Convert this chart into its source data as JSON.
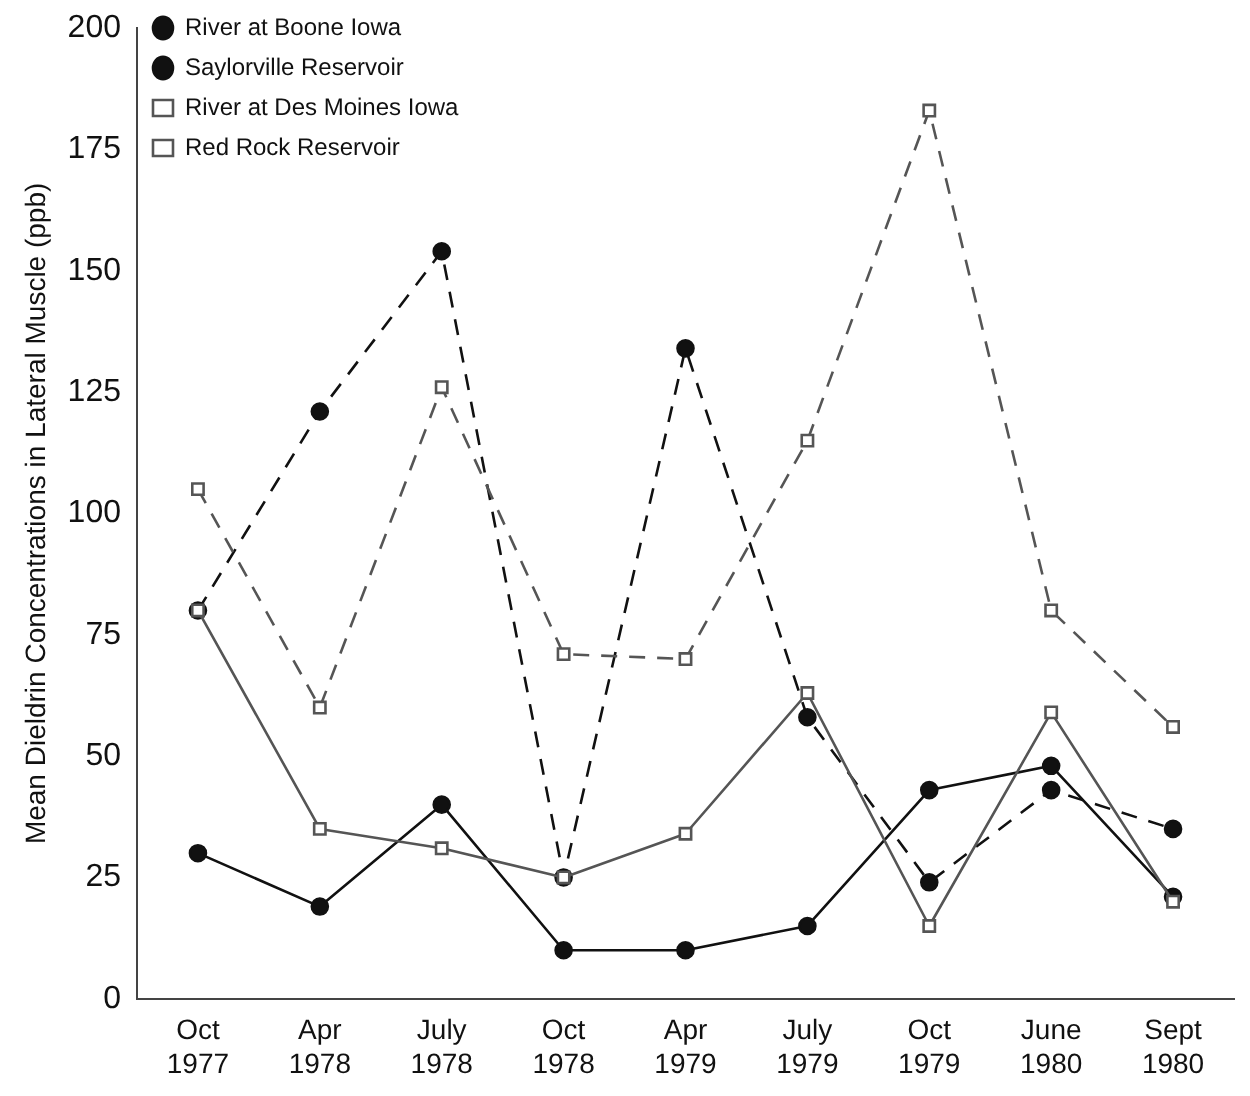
{
  "chart_data": {
    "type": "line",
    "ylabel": "Mean Dieldrin Concentrations in Lateral Muscle (ppb)",
    "categories": [
      "Oct 1977",
      "Apr 1978",
      "July 1978",
      "Oct 1978",
      "Apr 1979",
      "July 1979",
      "Oct 1979",
      "June 1980",
      "Sept 1980"
    ],
    "series": [
      {
        "name": "River at Boone Iowa",
        "color": "#111111",
        "marker": "circle",
        "line_style": "solid",
        "values": [
          30,
          19,
          40,
          10,
          10,
          15,
          43,
          48,
          21
        ]
      },
      {
        "name": "Saylorville Reservoir",
        "color": "#111111",
        "marker": "circle",
        "line_style": "dashed",
        "values": [
          80,
          121,
          154,
          25,
          134,
          58,
          24,
          43,
          35
        ]
      },
      {
        "name": "River at Des Moines Iowa",
        "color": "#555555",
        "marker": "square",
        "line_style": "solid",
        "values": [
          80,
          35,
          31,
          25,
          34,
          63,
          15,
          59,
          20
        ]
      },
      {
        "name": "Red Rock Reservoir",
        "color": "#555555",
        "marker": "square",
        "line_style": "dashed",
        "values": [
          105,
          60,
          126,
          71,
          70,
          115,
          183,
          80,
          56
        ]
      }
    ],
    "ylim": [
      0,
      200
    ],
    "yticks": [
      0,
      25,
      50,
      75,
      100,
      125,
      150,
      175,
      200
    ],
    "grid": false,
    "legend": "top left"
  }
}
